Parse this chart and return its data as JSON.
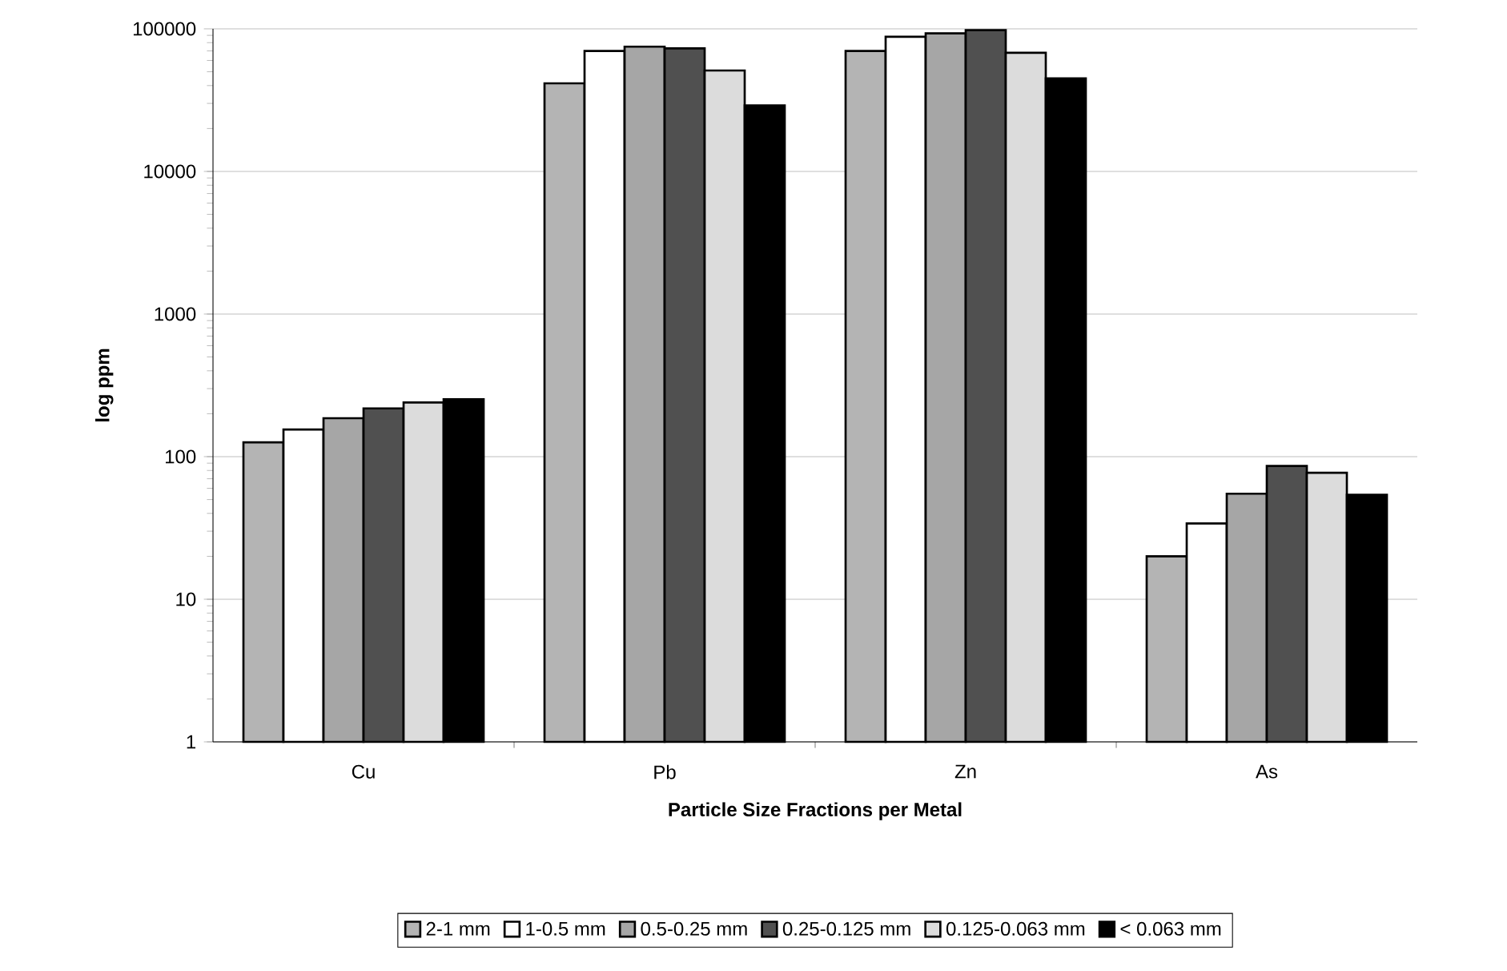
{
  "chart_data": {
    "type": "bar",
    "xlabel": "Particle Size Fractions per Metal",
    "ylabel": "log ppm",
    "categories": [
      "Cu",
      "Pb",
      "Zn",
      "As"
    ],
    "series": [
      {
        "name": "2-1 mm",
        "color": "#b4b4b4",
        "values": [
          126,
          41500,
          70000,
          20
        ]
      },
      {
        "name": "1-0.5 mm",
        "color": "#ffffff",
        "values": [
          155,
          70000,
          88000,
          34
        ]
      },
      {
        "name": "0.5-0.25 mm",
        "color": "#a6a6a6",
        "values": [
          186,
          75000,
          93000,
          55
        ]
      },
      {
        "name": "0.25-0.125 mm",
        "color": "#505050",
        "values": [
          218,
          73000,
          98000,
          86
        ]
      },
      {
        "name": "0.125-0.063 mm",
        "color": "#dcdcdc",
        "values": [
          240,
          51000,
          68000,
          77
        ]
      },
      {
        "name": "< 0.063 mm",
        "color": "#000000",
        "values": [
          253,
          29000,
          45000,
          54
        ]
      }
    ],
    "log": "y",
    "ylim": [
      1,
      100000
    ],
    "yticks": [
      1,
      10,
      100,
      1000,
      10000,
      100000
    ],
    "grid": "y",
    "legend": "bottom"
  }
}
